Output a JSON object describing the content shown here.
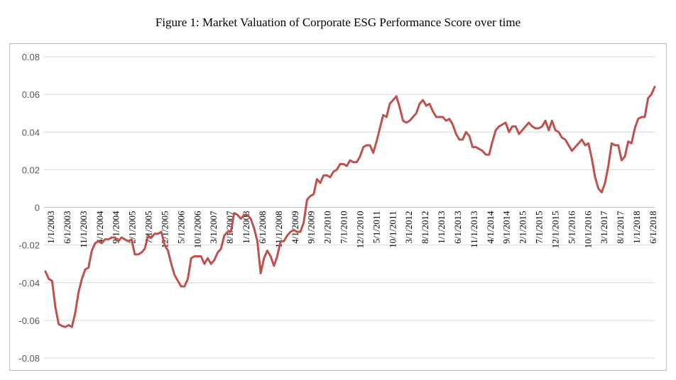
{
  "chart_data": {
    "type": "line",
    "title": "Figure 1: Market Valuation of Corporate ESG Performance Score over time",
    "xlabel": "",
    "ylabel": "",
    "ylim": [
      -0.08,
      0.08
    ],
    "yticks": [
      0.08,
      0.06,
      0.04,
      0.02,
      0,
      -0.02,
      -0.04,
      -0.06,
      -0.08
    ],
    "ytick_labels": [
      "0.08",
      "0.06",
      "0.04",
      "0.02",
      "0",
      "-0.02",
      "-0.04",
      "-0.06",
      "-0.08"
    ],
    "x_start": "1/1/2003",
    "x_end": "6/1/2018",
    "xtick_labels": [
      "1/1/2003",
      "6/1/2003",
      "11/1/2003",
      "4/1/2004",
      "9/1/2004",
      "2/1/2005",
      "7/1/2005",
      "12/1/2005",
      "5/1/2006",
      "10/1/2006",
      "3/1/2007",
      "8/1/2007",
      "1/1/2008",
      "6/1/2008",
      "11/1/2008",
      "4/1/2009",
      "9/1/2009",
      "2/1/2010",
      "7/1/2010",
      "12/1/2010",
      "5/1/2011",
      "10/1/2011",
      "3/1/2012",
      "8/1/2012",
      "1/1/2013",
      "6/1/2013",
      "11/1/2013",
      "4/1/2014",
      "9/1/2014",
      "2/1/2015",
      "7/1/2015",
      "12/1/2015",
      "5/1/2016",
      "10/1/2016",
      "3/1/2017",
      "8/1/2017",
      "1/1/2018",
      "6/1/2018"
    ],
    "grid": true,
    "legend": "none",
    "line_color": "#c0504d",
    "series": [
      {
        "values": [
          -0.034,
          -0.038,
          -0.039,
          -0.053,
          -0.062,
          -0.063,
          -0.0635,
          -0.0625,
          -0.0635,
          -0.056,
          -0.045,
          -0.038,
          -0.033,
          -0.032,
          -0.023,
          -0.019,
          -0.018,
          -0.019,
          -0.017,
          -0.017,
          -0.016,
          -0.016,
          -0.018,
          -0.016,
          -0.017,
          -0.018,
          -0.017,
          -0.025,
          -0.025,
          -0.024,
          -0.022,
          -0.015,
          -0.016,
          -0.014,
          -0.014,
          -0.013,
          -0.02,
          -0.023,
          -0.03,
          -0.036,
          -0.039,
          -0.042,
          -0.042,
          -0.038,
          -0.027,
          -0.026,
          -0.026,
          -0.026,
          -0.03,
          -0.027,
          -0.03,
          -0.028,
          -0.024,
          -0.022,
          -0.015,
          -0.013,
          -0.013,
          -0.003,
          -0.004,
          -0.006,
          -0.004,
          -0.004,
          -0.006,
          -0.011,
          -0.018,
          -0.035,
          -0.027,
          -0.023,
          -0.026,
          -0.031,
          -0.026,
          -0.018,
          -0.018,
          -0.015,
          -0.013,
          -0.012,
          -0.013,
          -0.013,
          -0.008,
          0.004,
          0.006,
          0.007,
          0.015,
          0.013,
          0.017,
          0.017,
          0.016,
          0.019,
          0.02,
          0.023,
          0.023,
          0.022,
          0.025,
          0.024,
          0.024,
          0.027,
          0.032,
          0.033,
          0.033,
          0.029,
          0.035,
          0.042,
          0.049,
          0.048,
          0.055,
          0.057,
          0.059,
          0.053,
          0.046,
          0.045,
          0.046,
          0.048,
          0.05,
          0.055,
          0.057,
          0.054,
          0.055,
          0.051,
          0.048,
          0.048,
          0.048,
          0.046,
          0.047,
          0.044,
          0.039,
          0.036,
          0.036,
          0.04,
          0.038,
          0.032,
          0.032,
          0.031,
          0.03,
          0.028,
          0.028,
          0.035,
          0.041,
          0.043,
          0.044,
          0.045,
          0.04,
          0.043,
          0.043,
          0.039,
          0.041,
          0.043,
          0.045,
          0.043,
          0.042,
          0.042,
          0.043,
          0.046,
          0.041,
          0.046,
          0.041,
          0.04,
          0.037,
          0.036,
          0.033,
          0.03,
          0.032,
          0.034,
          0.036,
          0.033,
          0.034,
          0.026,
          0.016,
          0.01,
          0.008,
          0.013,
          0.022,
          0.034,
          0.033,
          0.033,
          0.025,
          0.027,
          0.035,
          0.034,
          0.042,
          0.047,
          0.048,
          0.048,
          0.058,
          0.06,
          0.064
        ]
      }
    ]
  }
}
